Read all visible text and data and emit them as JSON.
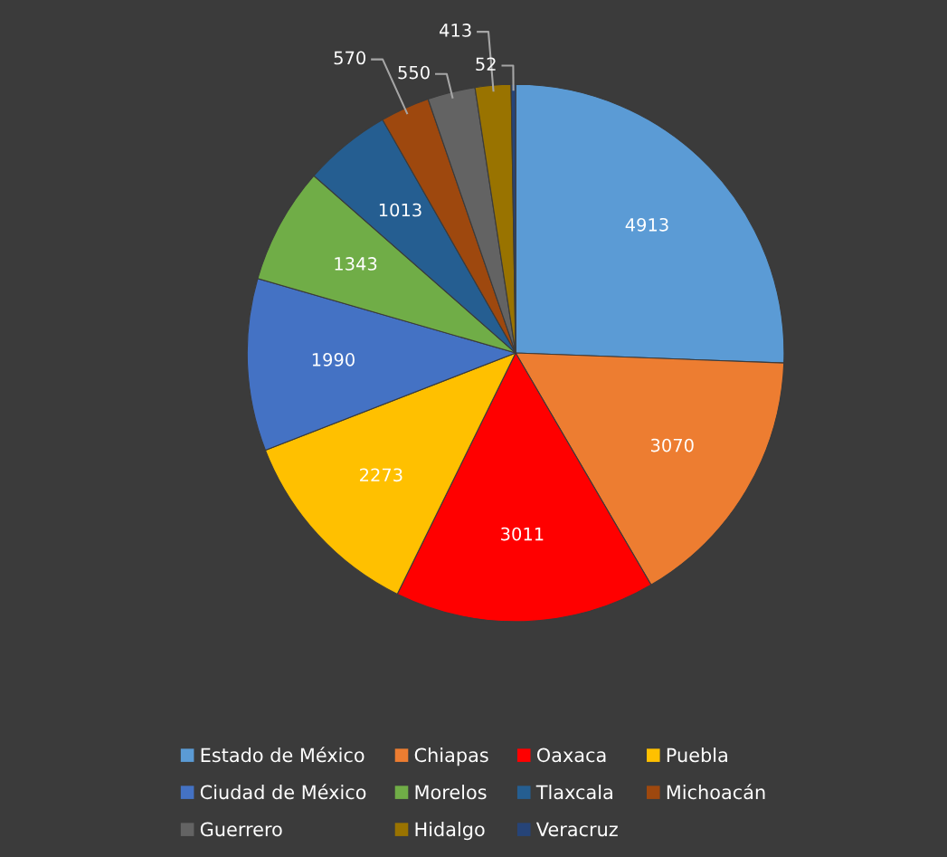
{
  "chart_data": {
    "type": "pie",
    "categories": [
      "Estado de México",
      "Chiapas",
      "Oaxaca",
      "Puebla",
      "Ciudad de México",
      "Morelos",
      "Tlaxcala",
      "Michoacán",
      "Guerrero",
      "Hidalgo",
      "Veracruz"
    ],
    "values": [
      4913,
      3070,
      3011,
      2273,
      1990,
      1343,
      1013,
      570,
      550,
      413,
      52
    ],
    "colors": [
      "#5b9bd5",
      "#ed7d31",
      "#ff0000",
      "#ffc000",
      "#4472c4",
      "#70ad47",
      "#255e91",
      "#9e480e",
      "#636363",
      "#997300",
      "#264478"
    ],
    "data_labels": true,
    "legend": "bottom"
  }
}
